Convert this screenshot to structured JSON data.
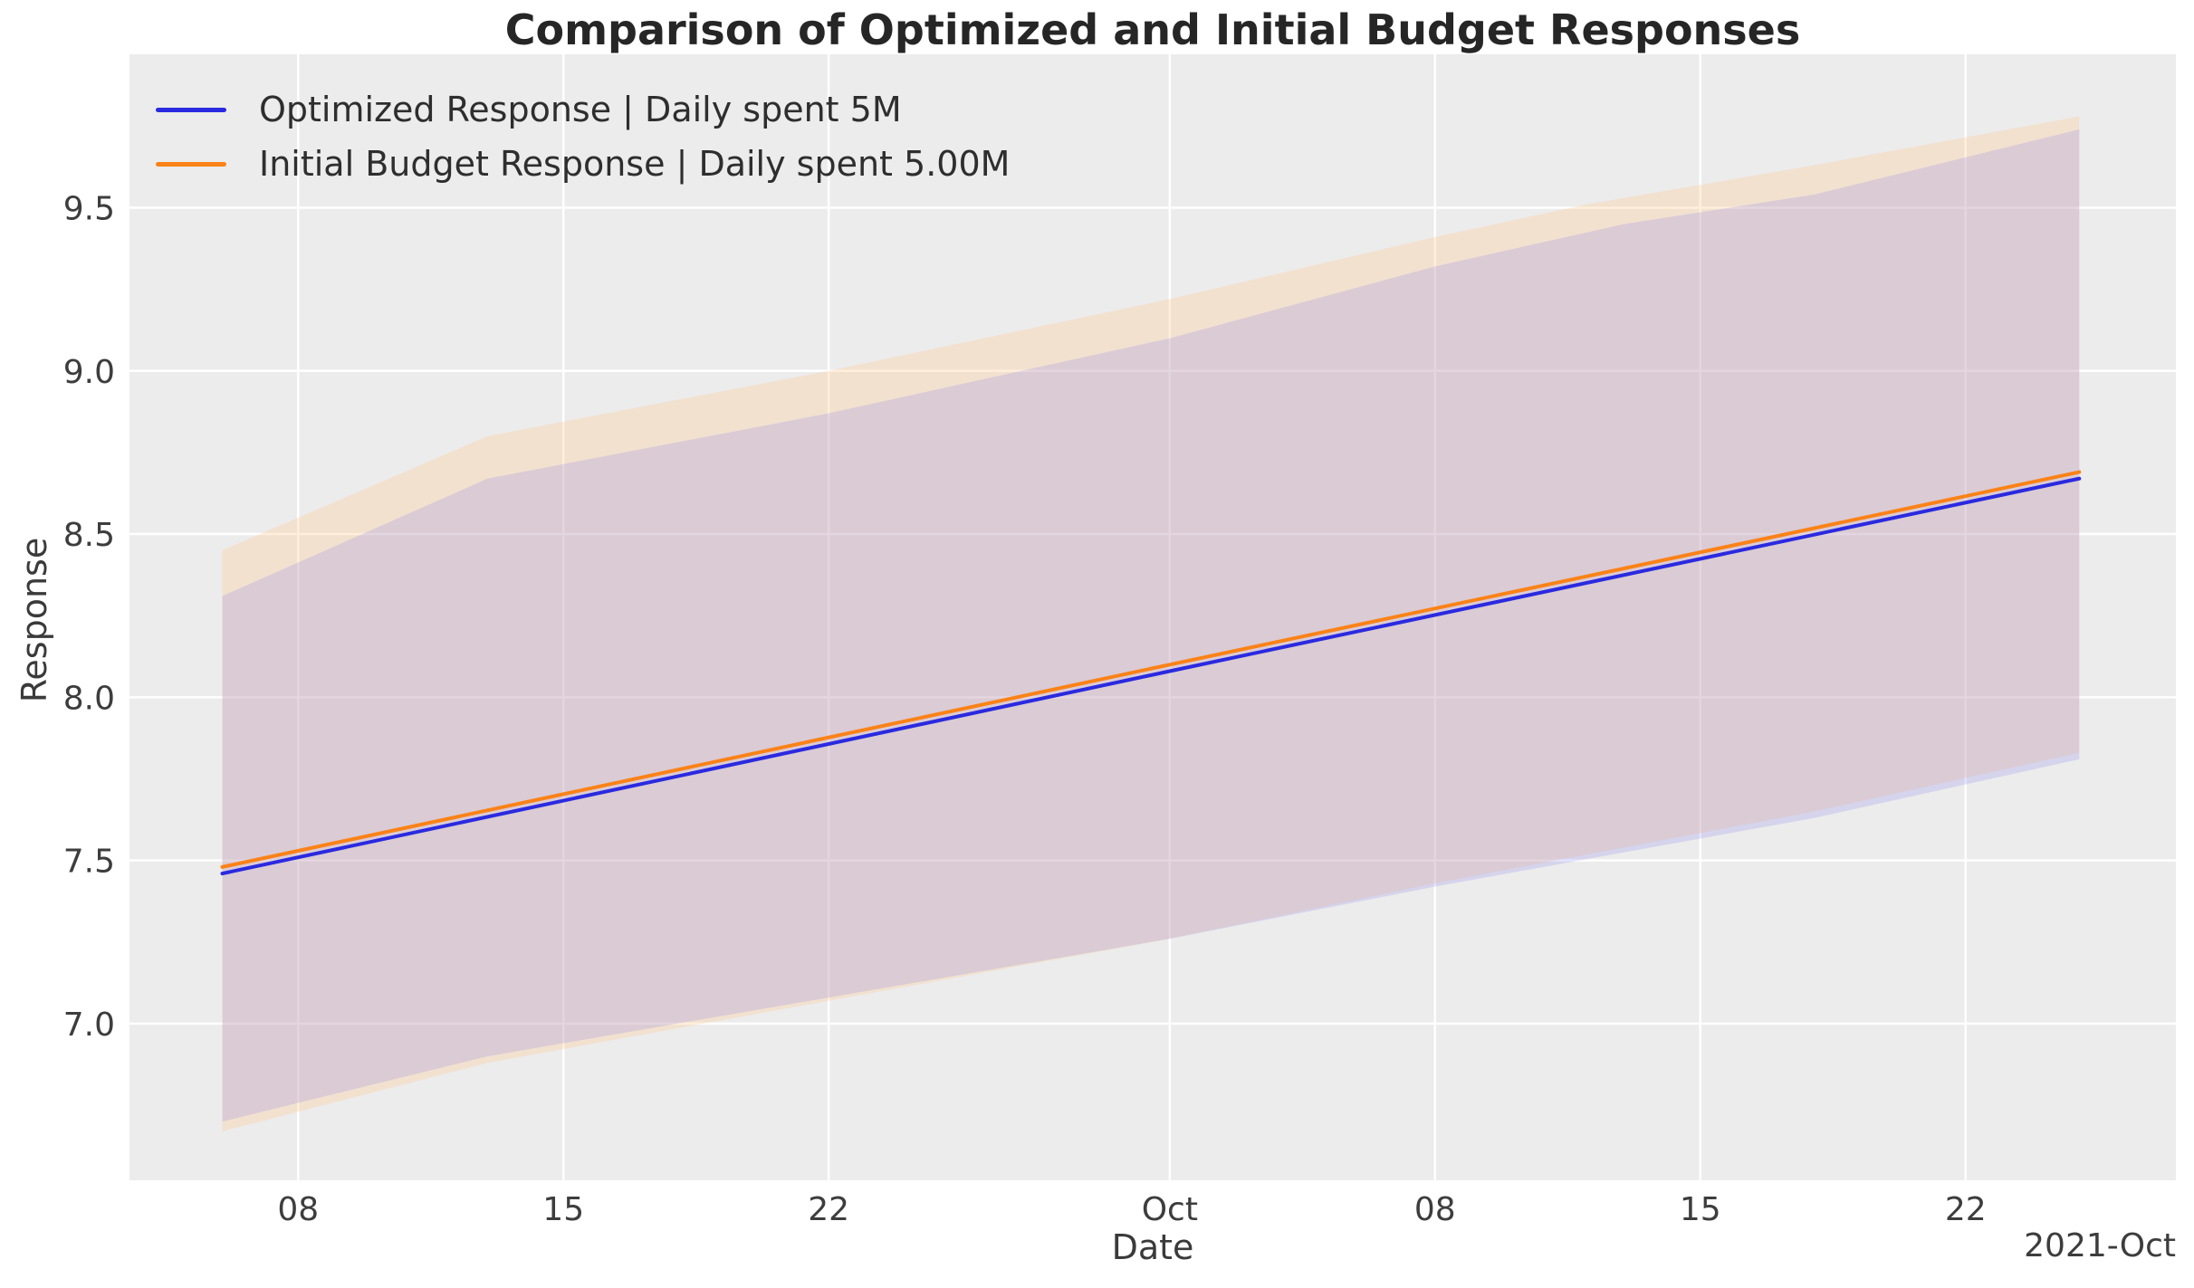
{
  "chart_data": {
    "type": "line",
    "title": "Comparison of Optimized and Initial Budget Responses",
    "xlabel": "Date",
    "ylabel": "Response",
    "legend_position": "upper left",
    "grid": true,
    "plot_bg": "#ececec",
    "grid_color": "#ffffff",
    "x_axis": {
      "offset_label": "2021-Oct",
      "range_days": [
        -2.45,
        51.55
      ],
      "ticks": [
        {
          "day": 2,
          "label": "08"
        },
        {
          "day": 9,
          "label": "15"
        },
        {
          "day": 16,
          "label": "22"
        },
        {
          "day": 25,
          "label": "Oct"
        },
        {
          "day": 32,
          "label": "08"
        },
        {
          "day": 39,
          "label": "15"
        },
        {
          "day": 46,
          "label": "22"
        }
      ]
    },
    "y_axis": {
      "range": [
        6.52,
        9.97
      ],
      "ticks": [
        {
          "value": 7.0,
          "label": "7.0"
        },
        {
          "value": 7.5,
          "label": "7.5"
        },
        {
          "value": 8.0,
          "label": "8.0"
        },
        {
          "value": 8.5,
          "label": "8.5"
        },
        {
          "value": 9.0,
          "label": "9.0"
        },
        {
          "value": 9.5,
          "label": "9.5"
        }
      ]
    },
    "series": [
      {
        "name": "Optimized Response | Daily spent 5M",
        "color": "#2a2ae0",
        "band_color": "rgba(130,128,235,0.22)",
        "line": [
          [
            0,
            7.46
          ],
          [
            25,
            8.08
          ],
          [
            49,
            8.67
          ]
        ],
        "band_upper": [
          [
            0,
            8.31
          ],
          [
            7,
            8.67
          ],
          [
            16,
            8.87
          ],
          [
            25,
            9.1
          ],
          [
            32,
            9.32
          ],
          [
            37,
            9.45
          ],
          [
            42,
            9.54
          ],
          [
            49,
            9.74
          ]
        ],
        "band_lower": [
          [
            0,
            6.7
          ],
          [
            7,
            6.9
          ],
          [
            16,
            7.08
          ],
          [
            25,
            7.26
          ],
          [
            32,
            7.42
          ],
          [
            42,
            7.63
          ],
          [
            49,
            7.81
          ]
        ]
      },
      {
        "name": "Initial Budget Response | Daily spent 5.00M",
        "color": "#fb8217",
        "band_color": "rgba(255,200,140,0.30)",
        "line": [
          [
            0,
            7.48
          ],
          [
            25,
            8.1
          ],
          [
            49,
            8.69
          ]
        ],
        "band_upper": [
          [
            0,
            8.45
          ],
          [
            7,
            8.8
          ],
          [
            16,
            9.0
          ],
          [
            25,
            9.22
          ],
          [
            32,
            9.41
          ],
          [
            36,
            9.51
          ],
          [
            42,
            9.63
          ],
          [
            49,
            9.78
          ]
        ],
        "band_lower": [
          [
            0,
            6.67
          ],
          [
            7,
            6.88
          ],
          [
            16,
            7.07
          ],
          [
            25,
            7.26
          ],
          [
            32,
            7.43
          ],
          [
            42,
            7.65
          ],
          [
            49,
            7.83
          ]
        ]
      }
    ]
  }
}
